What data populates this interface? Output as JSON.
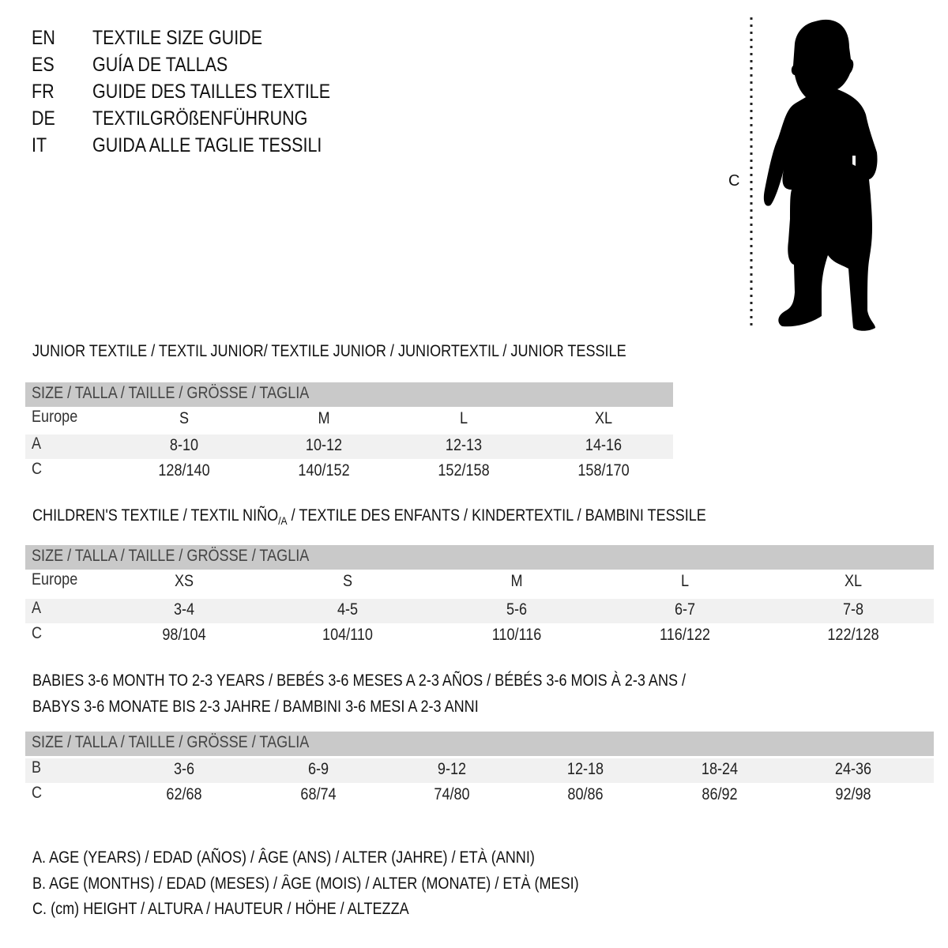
{
  "languages": [
    {
      "code": "EN",
      "title": "TEXTILE SIZE GUIDE"
    },
    {
      "code": "ES",
      "title": "GUÍA DE TALLAS"
    },
    {
      "code": "FR",
      "title": "GUIDE DES TAILLES TEXTILE"
    },
    {
      "code": "DE",
      "title": "TEXTILGRÖßENFÜHRUNG"
    },
    {
      "code": "IT",
      "title": "GUIDA ALLE TAGLIE TESSILI"
    }
  ],
  "figure": {
    "measure_label": "C"
  },
  "junior": {
    "title": "JUNIOR TEXTILE / TEXTIL JUNIOR/ TEXTILE JUNIOR / JUNIORTEXTIL / JUNIOR TESSILE",
    "header": "SIZE / TALLA / TAILLE / GRÖSSE / TAGLIA",
    "rows": [
      {
        "label": "Europe",
        "values": [
          "S",
          "M",
          "L",
          "XL"
        ]
      },
      {
        "label": "A",
        "values": [
          "8-10",
          "10-12",
          "12-13",
          "14-16"
        ]
      },
      {
        "label": "C",
        "values": [
          "128/140",
          "140/152",
          "152/158",
          "158/170"
        ]
      }
    ]
  },
  "children": {
    "title_part1": "CHILDREN'S TEXTILE / TEXTIL NIÑO",
    "title_sub": "/A",
    "title_part2": " / TEXTILE DES ENFANTS / KINDERTEXTIL / BAMBINI TESSILE",
    "header": "SIZE / TALLA / TAILLE / GRÖSSE / TAGLIA",
    "rows": [
      {
        "label": "Europe",
        "values": [
          "XS",
          "S",
          "M",
          "L",
          "XL"
        ]
      },
      {
        "label": "A",
        "values": [
          "3-4",
          "4-5",
          "5-6",
          "6-7",
          "7-8"
        ]
      },
      {
        "label": "C",
        "values": [
          "98/104",
          "104/110",
          "110/116",
          "116/122",
          "122/128"
        ]
      }
    ]
  },
  "babies": {
    "title_line1": "BABIES 3-6 MONTH TO 2-3 YEARS / BEBÉS 3-6 MESES A 2-3 AÑOS / BÉBÉS 3-6 MOIS À 2-3 ANS /",
    "title_line2": "BABYS 3-6 MONATE BIS 2-3 JAHRE / BAMBINI 3-6 MESI A 2-3 ANNI",
    "header": "SIZE / TALLA / TAILLE / GRÖSSE / TAGLIA",
    "rows": [
      {
        "label": "B",
        "values": [
          "3-6",
          "6-9",
          "9-12",
          "12-18",
          "18-24",
          "24-36"
        ]
      },
      {
        "label": "C",
        "values": [
          "62/68",
          "68/74",
          "74/80",
          "80/86",
          "86/92",
          "92/98"
        ]
      }
    ]
  },
  "legend": [
    "A. AGE (YEARS) / EDAD (AÑOS) / ÂGE (ANS) / ALTER (JAHRE) / ETÀ (ANNI)",
    "B. AGE (MONTHS) / EDAD (MESES) / ÂGE (MOIS) / ALTER (MONATE) / ETÀ (MESI)",
    "C. (cm) HEIGHT / ALTURA / HAUTEUR / HÖHE / ALTEZZA"
  ],
  "colors": {
    "header_row": "#c9c9c9",
    "alt_row": "#f1f1f1",
    "text": "#111111"
  }
}
